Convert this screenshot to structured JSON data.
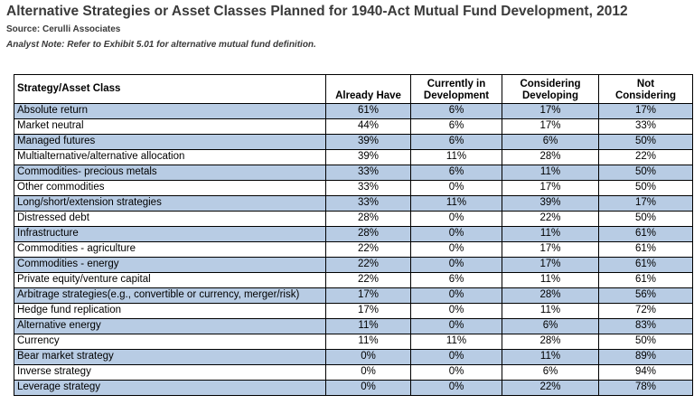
{
  "title": "Alternative Strategies or Asset Classes Planned for 1940-Act Mutual Fund Development, 2012",
  "source": "Source: Cerulli Associates",
  "note": "Analyst Note: Refer to Exhibit 5.01 for alternative mutual fund definition.",
  "table": {
    "headers": [
      "Strategy/Asset Class",
      "Already Have",
      "Currently in Development",
      "Considering Developing",
      "Not Considering"
    ],
    "header_lines": [
      [
        "Strategy/Asset Class"
      ],
      [
        "Already Have"
      ],
      [
        "Currently in",
        "Development"
      ],
      [
        "Considering",
        "Developing"
      ],
      [
        "Not",
        "Considering"
      ]
    ],
    "rows": [
      [
        "Absolute return",
        "61%",
        "6%",
        "17%",
        "17%"
      ],
      [
        "Market neutral",
        "44%",
        "6%",
        "17%",
        "33%"
      ],
      [
        "Managed futures",
        "39%",
        "6%",
        "6%",
        "50%"
      ],
      [
        "Multialternative/alternative allocation",
        "39%",
        "11%",
        "28%",
        "22%"
      ],
      [
        "Commodities- precious metals",
        "33%",
        "6%",
        "11%",
        "50%"
      ],
      [
        "Other commodities",
        "33%",
        "0%",
        "17%",
        "50%"
      ],
      [
        "Long/short/extension strategies",
        "33%",
        "11%",
        "39%",
        "17%"
      ],
      [
        "Distressed debt",
        "28%",
        "0%",
        "22%",
        "50%"
      ],
      [
        "Infrastructure",
        "28%",
        "0%",
        "11%",
        "61%"
      ],
      [
        "Commodities - agriculture",
        "22%",
        "0%",
        "17%",
        "61%"
      ],
      [
        "Commodities - energy",
        "22%",
        "0%",
        "17%",
        "61%"
      ],
      [
        "Private equity/venture capital",
        "22%",
        "6%",
        "11%",
        "61%"
      ],
      [
        "Arbitrage strategies(e.g., convertible or currency, merger/risk)",
        "17%",
        "0%",
        "28%",
        "56%"
      ],
      [
        "Hedge fund replication",
        "17%",
        "0%",
        "11%",
        "72%"
      ],
      [
        "Alternative energy",
        "11%",
        "0%",
        "6%",
        "83%"
      ],
      [
        "Currency",
        "11%",
        "11%",
        "28%",
        "50%"
      ],
      [
        "Bear market strategy",
        "0%",
        "0%",
        "11%",
        "89%"
      ],
      [
        "Inverse strategy",
        "0%",
        "0%",
        "6%",
        "94%"
      ],
      [
        "Leverage strategy",
        "0%",
        "0%",
        "22%",
        "78%"
      ]
    ]
  },
  "colors": {
    "band": "#b8cce4",
    "title_text": "#3a3a3a"
  }
}
